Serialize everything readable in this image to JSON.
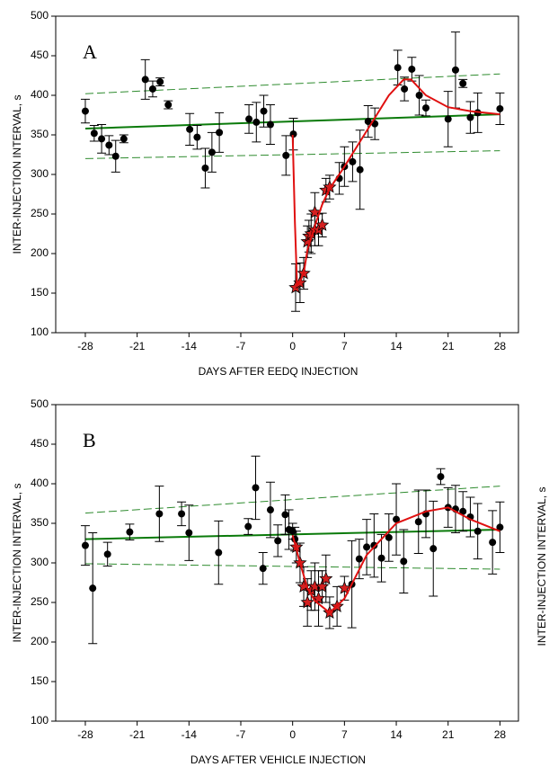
{
  "chart_data": [
    {
      "type": "scatter",
      "panel_label": "A",
      "xlabel": "DAYS AFTER EEDQ INJECTION",
      "ylabel": "INTER-INJECTION INTERVAL, s",
      "xlim": [
        -32,
        30.5
      ],
      "ylim": [
        100,
        500
      ],
      "xticks": [
        -28,
        -21,
        -14,
        -7,
        0,
        7,
        14,
        21,
        28
      ],
      "yticks": [
        100,
        150,
        200,
        250,
        300,
        350,
        400,
        450,
        500
      ],
      "series": [
        {
          "marker": "line",
          "style": "dash",
          "color": "#2e8b2e",
          "x": [
            -28,
            28
          ],
          "values": [
            402,
            427
          ]
        },
        {
          "marker": "line",
          "style": "dash",
          "color": "#2e8b2e",
          "x": [
            -28,
            28
          ],
          "values": [
            320,
            330
          ]
        },
        {
          "marker": "line",
          "style": "solid",
          "color": "#0a7a0a",
          "x": [
            -28,
            28
          ],
          "values": [
            358,
            376
          ]
        },
        {
          "marker": "circle",
          "color": "#000000",
          "x": [
            -28,
            -26.8,
            -25.8,
            -24.8,
            -23.9,
            -22.8,
            -19.9,
            -18.9,
            -17.9,
            -16.8,
            -13.9,
            -12.9,
            -11.8,
            -10.9,
            -9.9,
            -5.9,
            -4.9,
            -3.9,
            -3,
            -0.9,
            0.1,
            6.3,
            7,
            8.1,
            9.1,
            10.2,
            11.1,
            14.2,
            15.1,
            16.1,
            17.1,
            18,
            21,
            22,
            23,
            24,
            25,
            28
          ],
          "values": [
            380,
            352,
            345,
            337,
            323,
            345,
            420,
            408,
            417,
            388,
            357,
            347,
            308,
            328,
            353,
            370,
            366,
            380,
            363,
            324,
            351,
            295,
            310,
            316,
            306,
            367,
            364,
            435,
            408,
            433,
            400,
            384,
            370,
            432,
            415,
            372,
            378,
            383
          ],
          "errors": [
            15,
            10,
            18,
            12,
            20,
            5,
            25,
            10,
            5,
            5,
            20,
            15,
            25,
            25,
            25,
            18,
            25,
            20,
            25,
            25,
            20,
            20,
            25,
            25,
            50,
            20,
            20,
            22,
            15,
            15,
            25,
            10,
            35,
            48,
            5,
            20,
            25,
            20
          ]
        },
        {
          "marker": "star",
          "color": "#d42020",
          "x": [
            0.4,
            1,
            1.5,
            2,
            2.2,
            2.5,
            3,
            3,
            3.5,
            4,
            4.5,
            5
          ],
          "values": [
            157,
            163,
            175,
            215,
            222,
            225,
            230,
            252,
            230,
            236,
            280,
            284
          ],
          "errors": [
            30,
            25,
            20,
            20,
            20,
            25,
            20,
            25,
            20,
            15,
            15,
            15
          ]
        },
        {
          "marker": "line",
          "style": "solid",
          "color": "#e01010",
          "x": [
            0,
            0.3,
            0.6,
            1,
            1.5,
            2,
            3,
            4,
            5,
            7,
            10,
            13,
            15,
            16,
            18,
            21,
            24,
            28
          ],
          "values": [
            350,
            240,
            160,
            165,
            175,
            205,
            235,
            262,
            282,
            310,
            355,
            400,
            420,
            420,
            400,
            385,
            380,
            376
          ]
        }
      ]
    },
    {
      "type": "scatter",
      "panel_label": "B",
      "xlabel": "DAYS AFTER VEHICLE INJECTION",
      "ylabel": "INTER-INJECTION INTERVAL, s",
      "xlim": [
        -32,
        30.5
      ],
      "ylim": [
        100,
        500
      ],
      "xticks": [
        -28,
        -21,
        -14,
        -7,
        0,
        7,
        14,
        21,
        28
      ],
      "yticks": [
        100,
        150,
        200,
        250,
        300,
        350,
        400,
        450,
        500
      ],
      "series": [
        {
          "marker": "line",
          "style": "dash",
          "color": "#2e8b2e",
          "x": [
            -28,
            28
          ],
          "values": [
            363,
            397
          ]
        },
        {
          "marker": "line",
          "style": "dash",
          "color": "#2e8b2e",
          "x": [
            -28,
            28
          ],
          "values": [
            299,
            292
          ]
        },
        {
          "marker": "line",
          "style": "solid",
          "color": "#0a7a0a",
          "x": [
            -28,
            28
          ],
          "values": [
            330,
            342
          ]
        },
        {
          "marker": "circle",
          "color": "#000000",
          "x": [
            -28,
            -27,
            -25,
            -22,
            -18,
            -15,
            -14,
            -10,
            -6,
            -5,
            -4,
            -3,
            -2,
            -1,
            -0.5,
            0,
            0.3,
            8,
            9,
            10,
            11,
            12,
            13,
            14,
            15,
            17,
            18,
            19,
            20,
            21,
            22,
            23,
            24,
            25,
            27,
            28
          ],
          "values": [
            322,
            268,
            311,
            339,
            362,
            362,
            338,
            313,
            346,
            395,
            293,
            367,
            328,
            361,
            342,
            340,
            330,
            273,
            305,
            320,
            322,
            306,
            332,
            355,
            302,
            352,
            362,
            318,
            409,
            370,
            368,
            365,
            358,
            340,
            326,
            345
          ],
          "errors": [
            25,
            70,
            15,
            10,
            35,
            15,
            35,
            40,
            10,
            40,
            20,
            35,
            20,
            25,
            25,
            10,
            15,
            55,
            25,
            35,
            40,
            30,
            30,
            45,
            40,
            40,
            30,
            60,
            10,
            25,
            30,
            25,
            25,
            35,
            40,
            32
          ]
        },
        {
          "marker": "star",
          "color": "#d42020",
          "x": [
            0.5,
            1,
            1.5,
            2,
            2.5,
            3,
            3.5,
            4,
            4.5,
            5,
            6,
            7
          ],
          "values": [
            320,
            300,
            270,
            250,
            265,
            270,
            255,
            270,
            280,
            237,
            245,
            268
          ],
          "errors": [
            20,
            25,
            25,
            30,
            25,
            30,
            35,
            20,
            30,
            20,
            25,
            15
          ]
        },
        {
          "marker": "line",
          "style": "solid",
          "color": "#e01010",
          "x": [
            0,
            1,
            2,
            3,
            5,
            7,
            10,
            14,
            18,
            21,
            24,
            28
          ],
          "values": [
            335,
            300,
            268,
            252,
            237,
            255,
            310,
            350,
            365,
            370,
            355,
            340
          ]
        }
      ]
    }
  ],
  "cropped_text": "INTER-INJECTION INTERVAL, s"
}
